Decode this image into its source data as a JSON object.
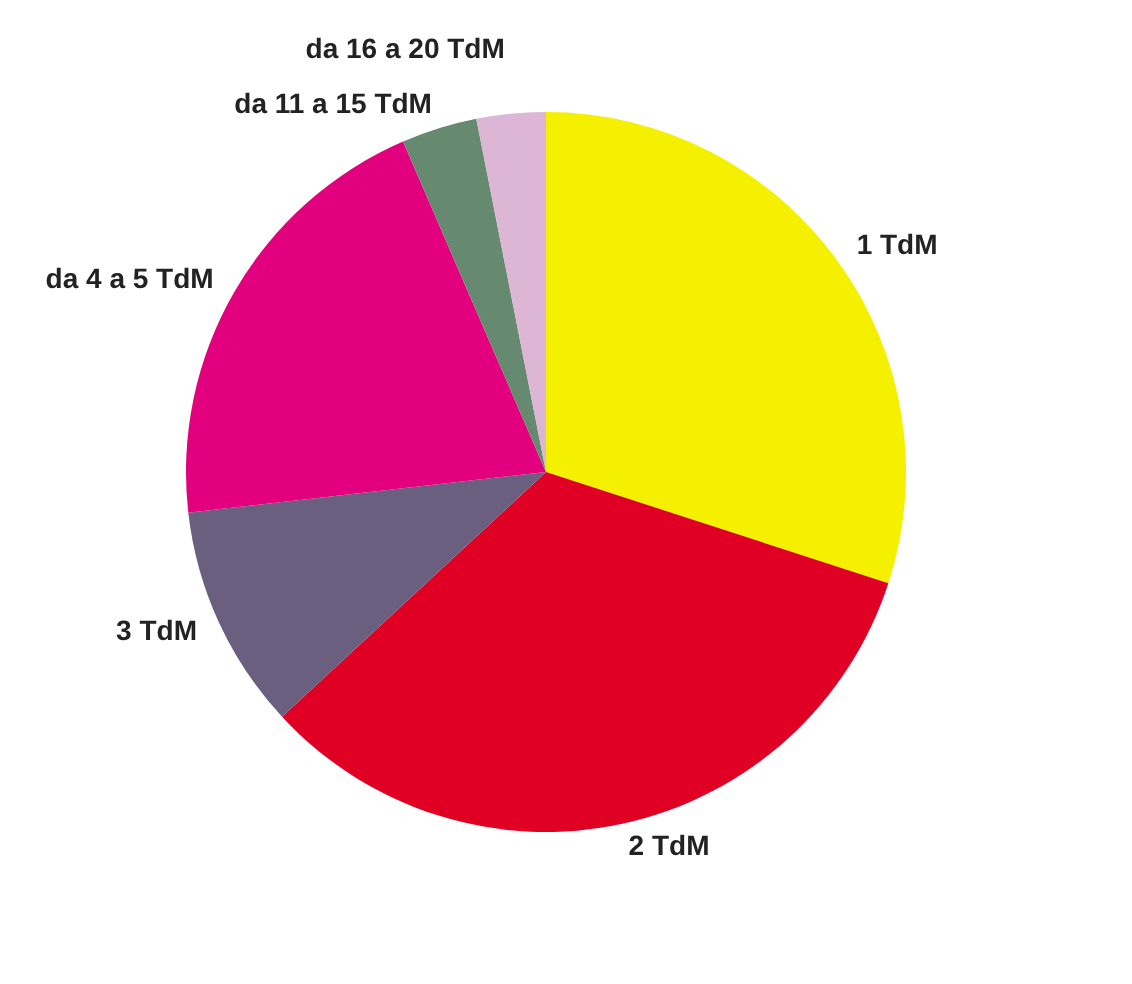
{
  "chart_data": {
    "type": "pie",
    "categories": [
      "1 TdM",
      "2 TdM",
      "3 TdM",
      "da 4 a 5 TdM",
      "da 11 a 15 TdM",
      "da 16 a 20 TdM"
    ],
    "values": [
      30.0,
      33.1,
      10.1,
      20.3,
      3.4,
      3.1
    ],
    "colors": [
      "#f5f000",
      "#e00024",
      "#6a5f7e",
      "#e2007e",
      "#668a70",
      "#dcb6d4"
    ],
    "legend": false
  }
}
